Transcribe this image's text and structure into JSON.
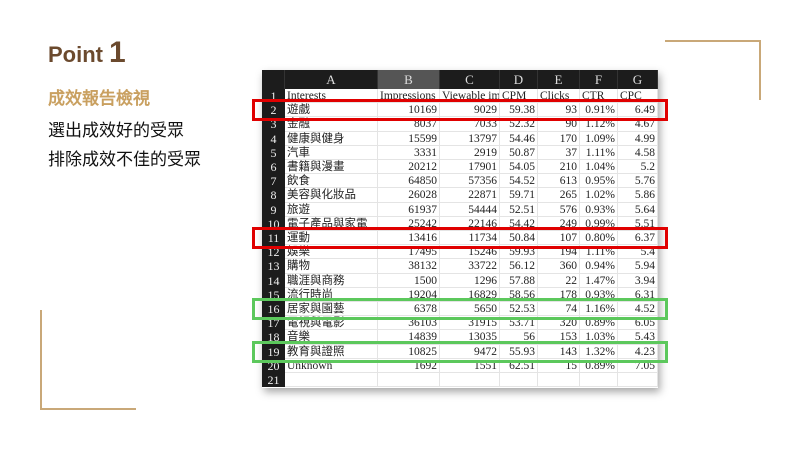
{
  "heading": {
    "word": "Point",
    "number": "1"
  },
  "subtitle": "成效報告檢視",
  "lines": [
    "選出成效好的受眾",
    "排除成效不佳的受眾"
  ],
  "colors": {
    "brown": "#6b4a2e",
    "gold": "#c9a060",
    "red": "#e00000",
    "green": "#5cc85c"
  },
  "sheet": {
    "columns": [
      "A",
      "B",
      "C",
      "D",
      "E",
      "F",
      "G"
    ],
    "selected_column": "B",
    "rows": [
      [
        "Interests",
        "Impressions",
        "Viewable imp",
        "CPM",
        "Clicks",
        "CTR",
        "CPC"
      ],
      [
        "遊戲",
        "10169",
        "9029",
        "59.38",
        "93",
        "0.91%",
        "6.49"
      ],
      [
        "金融",
        "8037",
        "7033",
        "52.32",
        "90",
        "1.12%",
        "4.67"
      ],
      [
        "健康與健身",
        "15599",
        "13797",
        "54.46",
        "170",
        "1.09%",
        "4.99"
      ],
      [
        "汽車",
        "3331",
        "2919",
        "50.87",
        "37",
        "1.11%",
        "4.58"
      ],
      [
        "書籍與漫畫",
        "20212",
        "17901",
        "54.05",
        "210",
        "1.04%",
        "5.2"
      ],
      [
        "飲食",
        "64850",
        "57356",
        "54.52",
        "613",
        "0.95%",
        "5.76"
      ],
      [
        "美容與化妝品",
        "26028",
        "22871",
        "59.71",
        "265",
        "1.02%",
        "5.86"
      ],
      [
        "旅遊",
        "61937",
        "54444",
        "52.51",
        "576",
        "0.93%",
        "5.64"
      ],
      [
        "電子產品與家電",
        "25242",
        "22146",
        "54.42",
        "249",
        "0.99%",
        "5.51"
      ],
      [
        "運動",
        "13416",
        "11734",
        "50.84",
        "107",
        "0.80%",
        "6.37"
      ],
      [
        "娛樂",
        "17495",
        "15246",
        "59.93",
        "194",
        "1.11%",
        "5.4"
      ],
      [
        "購物",
        "38132",
        "33722",
        "56.12",
        "360",
        "0.94%",
        "5.94"
      ],
      [
        "職涯與商務",
        "1500",
        "1296",
        "57.88",
        "22",
        "1.47%",
        "3.94"
      ],
      [
        "流行時尚",
        "19204",
        "16829",
        "58.56",
        "178",
        "0.93%",
        "6.31"
      ],
      [
        "居家與園藝",
        "6378",
        "5650",
        "52.53",
        "74",
        "1.16%",
        "4.52"
      ],
      [
        "電視與電影",
        "36103",
        "31915",
        "53.71",
        "320",
        "0.89%",
        "6.05"
      ],
      [
        "音樂",
        "14839",
        "13035",
        "56",
        "153",
        "1.03%",
        "5.43"
      ],
      [
        "教育與證照",
        "10825",
        "9472",
        "55.93",
        "143",
        "1.32%",
        "4.23"
      ],
      [
        "Unknown",
        "1692",
        "1551",
        "62.51",
        "15",
        "0.89%",
        "7.05"
      ],
      [
        "",
        "",
        "",
        "",
        "",
        "",
        ""
      ]
    ],
    "highlight_red_rows": [
      2,
      11
    ],
    "highlight_green_rows": [
      16,
      19
    ]
  }
}
